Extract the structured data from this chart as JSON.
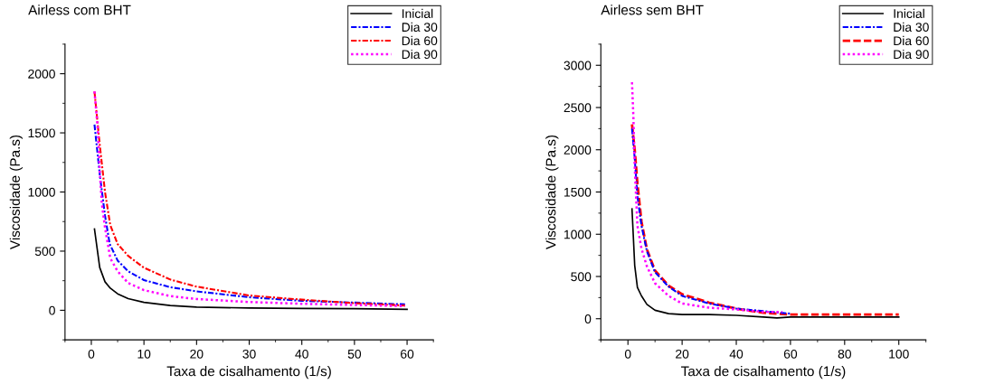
{
  "chart_data": [
    {
      "type": "line",
      "title": "Airless com BHT",
      "xlabel": "Taxa de cisalhamento (1/s)",
      "ylabel": "Viscosidade (Pa.s)",
      "xlim": [
        -5,
        65
      ],
      "xticks": [
        0,
        10,
        20,
        30,
        40,
        50,
        60
      ],
      "ylim": [
        -250,
        2250
      ],
      "yticks": [
        0,
        500,
        1000,
        1500,
        2000
      ],
      "grid": false,
      "legend": "top right",
      "series": [
        {
          "name": "Inicial",
          "color": "#000000",
          "line_style": "solid",
          "x": [
            0.6,
            1.6,
            2.6,
            3.6,
            5,
            7,
            10,
            15,
            20,
            30,
            40,
            50,
            60
          ],
          "values": [
            687,
            361,
            241,
            187,
            139,
            99,
            67,
            40,
            27,
            19,
            16,
            13,
            8
          ]
        },
        {
          "name": "Dia 30",
          "color": "#0000ff",
          "line_style": "dashdot",
          "x": [
            0.6,
            1.6,
            2.6,
            3.5,
            5,
            7,
            10,
            15,
            20,
            30,
            40,
            50,
            59.6
          ],
          "values": [
            1570,
            1150,
            800,
            560,
            420,
            330,
            255,
            195,
            160,
            110,
            80,
            65,
            50
          ]
        },
        {
          "name": "Dia 60",
          "color": "#ff0000",
          "line_style": "dashdot",
          "x": [
            0.6,
            1.6,
            2.6,
            3.6,
            5,
            7,
            10,
            15,
            20,
            30,
            40,
            50,
            59.6
          ],
          "values": [
            1850,
            1400,
            1000,
            720,
            560,
            460,
            360,
            260,
            200,
            125,
            90,
            60,
            40
          ]
        },
        {
          "name": "Dia 90",
          "color": "#ff00ff",
          "line_style": "dotted",
          "x": [
            0.6,
            1.2,
            1.6,
            2.0,
            2.6,
            3.6,
            5,
            7,
            10,
            15,
            20,
            30,
            40,
            50,
            59.6
          ],
          "values": [
            1850,
            1550,
            1180,
            900,
            700,
            440,
            330,
            230,
            170,
            120,
            95,
            70,
            55,
            45,
            35
          ]
        }
      ]
    },
    {
      "type": "line",
      "title": "Airless sem BHT",
      "xlabel": "Taxa de cisalhamento (1/s)",
      "ylabel": "Viscosidade (Pa.s)",
      "xlim": [
        -10,
        110
      ],
      "xticks": [
        0,
        20,
        40,
        60,
        80,
        100
      ],
      "ylim": [
        -250,
        3250
      ],
      "yticks": [
        0,
        500,
        1000,
        1500,
        2000,
        2500,
        3000
      ],
      "grid": false,
      "legend": "top right",
      "series": [
        {
          "name": "Inicial",
          "color": "#000000",
          "line_style": "solid",
          "x": [
            1.5,
            2.5,
            3.5,
            5,
            7,
            10,
            15,
            20,
            30,
            40,
            50,
            55,
            60,
            100
          ],
          "values": [
            1300,
            630,
            370,
            270,
            170,
            100,
            60,
            50,
            50,
            40,
            20,
            10,
            20,
            20
          ]
        },
        {
          "name": "Dia 30",
          "color": "#0000ff",
          "line_style": "dashdot",
          "x": [
            1.5,
            2.5,
            3.5,
            5,
            7,
            10,
            15,
            20,
            30,
            40,
            50,
            60
          ],
          "values": [
            2250,
            1900,
            1450,
            1100,
            800,
            550,
            380,
            270,
            180,
            120,
            90,
            60
          ]
        },
        {
          "name": "Dia 60",
          "color": "#ff0000",
          "line_style": "dashed",
          "x": [
            1.5,
            2.5,
            3.5,
            5,
            7,
            10,
            15,
            20,
            30,
            40,
            50,
            60,
            100
          ],
          "values": [
            2300,
            2000,
            1600,
            1150,
            820,
            570,
            390,
            290,
            190,
            120,
            70,
            50,
            50
          ]
        },
        {
          "name": "Dia 90",
          "color": "#ff00ff",
          "line_style": "dotted",
          "x": [
            1.5,
            2,
            2.5,
            3.5,
            5,
            7,
            10,
            15,
            20,
            30,
            40,
            50,
            57
          ],
          "values": [
            2800,
            2400,
            1800,
            1100,
            830,
            620,
            420,
            270,
            180,
            130,
            110,
            80,
            80
          ]
        }
      ]
    }
  ]
}
